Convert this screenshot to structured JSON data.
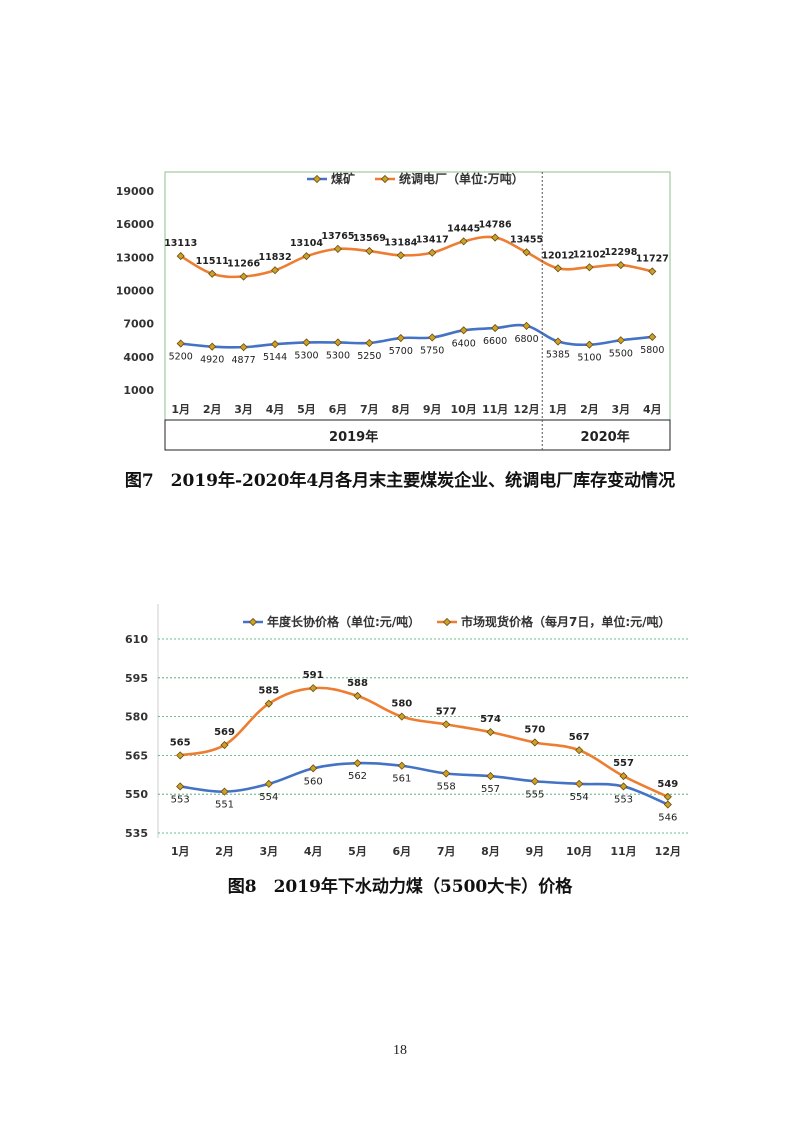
{
  "page": {
    "number": "18"
  },
  "chart_data": [
    {
      "type": "line",
      "title": "",
      "caption": "图7　2019年-2020年4月各月末主要煤炭企业、统调电厂库存变动情况",
      "categories": [
        "1月",
        "2月",
        "3月",
        "4月",
        "5月",
        "6月",
        "7月",
        "8月",
        "9月",
        "10月",
        "11月",
        "12月",
        "1月",
        "2月",
        "3月",
        "4月"
      ],
      "year_groups": [
        {
          "label": "2019年",
          "span": 12
        },
        {
          "label": "2020年",
          "span": 4
        }
      ],
      "series": [
        {
          "name": "煤矿",
          "color": "#4472c4",
          "labels_below": true,
          "values": [
            5200,
            4920,
            4877,
            5144,
            5300,
            5300,
            5250,
            5700,
            5750,
            6400,
            6600,
            6800,
            5385,
            5100,
            5500,
            5800
          ]
        },
        {
          "name": "统调电厂（单位:万吨）",
          "color": "#ed7d31",
          "labels_below": false,
          "values": [
            13113,
            11511,
            11266,
            11832,
            13104,
            13765,
            13569,
            13184,
            13417,
            14445,
            14786,
            13455,
            12012,
            12102,
            12298,
            11727
          ]
        }
      ],
      "yticks": [
        1000,
        4000,
        7000,
        10000,
        13000,
        16000,
        19000
      ],
      "ylim": [
        1000,
        19000
      ],
      "grid": false,
      "legend": "top-center"
    },
    {
      "type": "line",
      "title": "",
      "caption": "图8　2019年下水动力煤（5500大卡）价格",
      "categories": [
        "1月",
        "2月",
        "3月",
        "4月",
        "5月",
        "6月",
        "7月",
        "8月",
        "9月",
        "10月",
        "11月",
        "12月"
      ],
      "series": [
        {
          "name": "年度长协价格（单位:元/吨）",
          "color": "#4472c4",
          "labels_below": true,
          "values": [
            553,
            551,
            554,
            560,
            562,
            561,
            558,
            557,
            555,
            554,
            553,
            546
          ]
        },
        {
          "name": "市场现货价格（每月7日，单位:元/吨）",
          "color": "#ed7d31",
          "labels_below": false,
          "values": [
            565,
            569,
            585,
            591,
            588,
            580,
            577,
            574,
            570,
            567,
            557,
            549
          ]
        }
      ],
      "yticks": [
        535,
        550,
        565,
        580,
        595,
        610
      ],
      "ylim": [
        535,
        610
      ],
      "grid": true,
      "legend": "top-center"
    }
  ]
}
